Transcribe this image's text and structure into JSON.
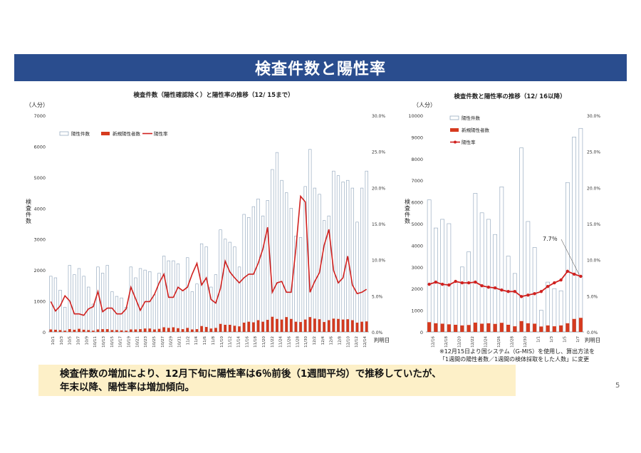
{
  "banner": {
    "title": "検査件数と陽性率"
  },
  "note": {
    "line1": "検査件数の増加により、12月下旬に陽性率は6％前後（1週間平均）で推移していたが、",
    "line2": "年末以降、陽性率は増加傾向。"
  },
  "page_number": "5",
  "footnote": {
    "line1": "※12月15日より国システム（G-MIS）を使用し、算出方法を",
    "line2": "「1週間の陽性者数／1週間の検体採取をした人数」に変更"
  },
  "colors": {
    "tests": "#ffffff",
    "tests_stroke": "#8aa0b8",
    "positives": "#d63a1e",
    "rate": "#d0211f",
    "banner": "#2a4d8e"
  },
  "chart_data": [
    {
      "type": "bar",
      "title": "検査件数（陽性確認除く）と陽性率の推移（12/ 15まで）",
      "y_unit": "（人分）",
      "ylabel": "検査件数",
      "xlabel": "判明日",
      "ylim": [
        0,
        7000
      ],
      "y_ticks": [
        "0",
        "1000",
        "2000",
        "3000",
        "4000",
        "5000",
        "6000",
        "7000"
      ],
      "y2lim": [
        0,
        30
      ],
      "y2_ticks": [
        "0.0%",
        "5.0%",
        "10.0%",
        "15.0%",
        "20.0%",
        "25.0%",
        "30.0%"
      ],
      "tick_labels": [
        "10/1",
        "10/3",
        "10/5",
        "10/7",
        "10/9",
        "10/11",
        "10/13",
        "10/15",
        "10/17",
        "10/19",
        "10/21",
        "10/23",
        "10/25",
        "10/27",
        "10/29",
        "10/31",
        "11/2",
        "11/4",
        "11/6",
        "11/8",
        "11/10",
        "11/12",
        "11/14",
        "11/16",
        "11/18",
        "11/20",
        "11/22",
        "11/24",
        "11/26",
        "11/28",
        "11/30",
        "12/2",
        "12/4",
        "12/6",
        "12/8",
        "12/10",
        "12/12",
        "12/14"
      ],
      "legend": [
        "陽性件数",
        "新規陽性者数",
        "陽性率"
      ],
      "series": [
        {
          "name": "陽性件数",
          "values": [
            1800,
            1750,
            1350,
            800,
            2150,
            1850,
            2050,
            1800,
            1450,
            900,
            2100,
            1900,
            2150,
            1300,
            1150,
            1100,
            800,
            2100,
            1750,
            2050,
            2000,
            1950,
            1200,
            1900,
            2450,
            2300,
            2300,
            2200,
            1350,
            2400,
            1300,
            1550,
            2850,
            2750,
            1450,
            1850,
            3300,
            3000,
            2900,
            2750,
            2100,
            3800,
            3700,
            4050,
            4300,
            3750,
            4250,
            5250,
            5800,
            4900,
            4500,
            4000,
            3100,
            3050,
            4700,
            5900,
            4650,
            4450,
            3600,
            3750,
            5200,
            5050,
            4850,
            4900,
            4650,
            3550,
            4650,
            5200
          ]
        },
        {
          "name": "新規陽性者数",
          "values": [
            80,
            70,
            60,
            40,
            90,
            70,
            100,
            70,
            60,
            40,
            80,
            90,
            90,
            60,
            60,
            50,
            40,
            80,
            80,
            90,
            110,
            110,
            80,
            100,
            150,
            130,
            150,
            120,
            90,
            130,
            80,
            90,
            190,
            160,
            110,
            130,
            260,
            230,
            230,
            200,
            180,
            300,
            330,
            310,
            380,
            330,
            390,
            490,
            420,
            400,
            480,
            420,
            330,
            320,
            400,
            480,
            430,
            410,
            320,
            380,
            430,
            420,
            400,
            410,
            380,
            300,
            330,
            340
          ]
        },
        {
          "name": "陽性率",
          "values": [
            4.2,
            2.9,
            3.6,
            5.0,
            4.3,
            2.5,
            2.5,
            2.3,
            3.2,
            3.5,
            5.6,
            2.8,
            3.3,
            3.3,
            2.5,
            2.5,
            3.2,
            6.2,
            4.6,
            3.0,
            4.2,
            4.2,
            5.2,
            6.8,
            8.0,
            4.8,
            4.8,
            6.2,
            5.7,
            6.2,
            8.0,
            9.5,
            6.5,
            7.5,
            4.5,
            4.0,
            6.0,
            9.8,
            8.3,
            7.5,
            6.8,
            7.5,
            8.0,
            8.0,
            9.5,
            11.5,
            14.5,
            5.5,
            6.8,
            7.0,
            5.5,
            5.5,
            11.5,
            18.8,
            18.0,
            5.5,
            7.0,
            8.2,
            12.0,
            14.2,
            8.5,
            6.8,
            7.5,
            10.5,
            6.5,
            5.3,
            5.5,
            5.9
          ]
        }
      ]
    },
    {
      "type": "bar",
      "title": "検査件数と陽性率の推移（12/ 16以降）",
      "y_unit": "（人分）",
      "ylabel": "検査件数",
      "xlabel": "判明日",
      "ylim": [
        0,
        10000
      ],
      "y_ticks": [
        "0",
        "1000",
        "2000",
        "3000",
        "4000",
        "5000",
        "6000",
        "7000",
        "8000",
        "9000",
        "10000"
      ],
      "y2lim": [
        0,
        30
      ],
      "y2_ticks": [
        "0.0%",
        "5.0%",
        "10.0%",
        "15.0%",
        "20.0%",
        "25.0%",
        "30.0%"
      ],
      "tick_labels": [
        "12/16",
        "12/18",
        "12/20",
        "12/22",
        "12/24",
        "12/26",
        "12/28",
        "12/30",
        "1/1",
        "1/3",
        "1/5",
        "1/7"
      ],
      "legend": [
        "陽性件数",
        "新規陽性者数",
        "陽性率"
      ],
      "annotation": "7.7％",
      "series": [
        {
          "name": "陽性件数",
          "values": [
            6100,
            4800,
            5200,
            5000,
            2300,
            3000,
            3700,
            6400,
            5500,
            5200,
            4500,
            6700,
            3500,
            2700,
            8500,
            5100,
            3900,
            1000,
            2300,
            2000,
            1900,
            6900,
            9000,
            9400
          ]
        },
        {
          "name": "新規陽性者数",
          "values": [
            450,
            400,
            380,
            350,
            330,
            300,
            320,
            430,
            380,
            400,
            370,
            420,
            330,
            260,
            500,
            400,
            380,
            250,
            300,
            260,
            300,
            400,
            600,
            650
          ]
        },
        {
          "name": "陽性率",
          "values": [
            6.6,
            6.9,
            6.6,
            6.5,
            7.0,
            6.8,
            6.8,
            6.9,
            6.4,
            6.2,
            6.1,
            5.8,
            5.6,
            5.6,
            4.9,
            5.1,
            5.3,
            5.6,
            6.3,
            6.8,
            7.2,
            8.4,
            8.0,
            7.7
          ]
        }
      ]
    }
  ]
}
